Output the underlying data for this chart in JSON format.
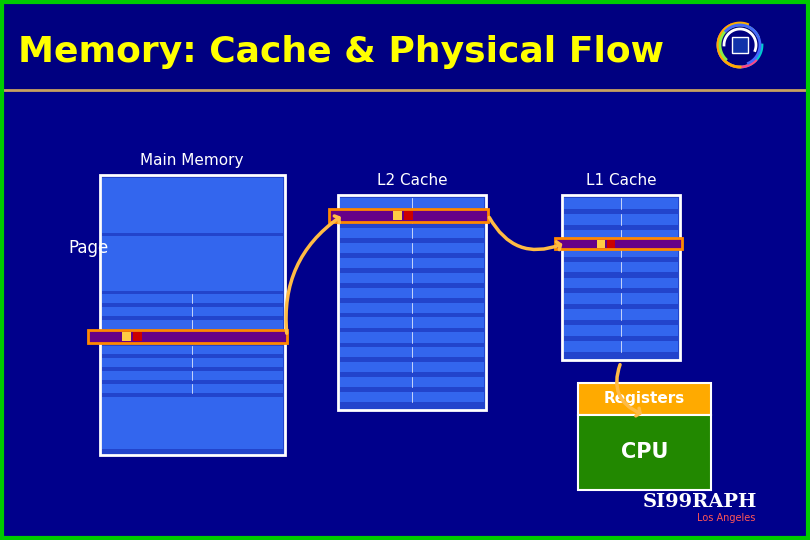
{
  "title": "Memory: Cache & Physical Flow",
  "title_color": "#FFFF00",
  "bg_color": "#00008B",
  "header_bg": "#000080",
  "border_color": "#00CC00",
  "separator_color": "#C8A060",
  "white": "#FFFFFF",
  "blue_block": "#2244CC",
  "blue_stripe": "#3366EE",
  "orange_bar": "#FF8800",
  "purple_bar": "#660088",
  "red_sq": "#CC0000",
  "gold_sq": "#FFCC44",
  "green_cpu": "#228800",
  "registers_bg": "#FFAA00",
  "arrow_color": "#FFBB44",
  "labels": {
    "main_memory": "Main Memory",
    "l2_cache": "L2 Cache",
    "l1_cache": "L1 Cache",
    "page": "Page",
    "registers": "Registers",
    "cpu": "CPU",
    "siggraph": "SI99RAPH",
    "la": "Los Angeles"
  }
}
